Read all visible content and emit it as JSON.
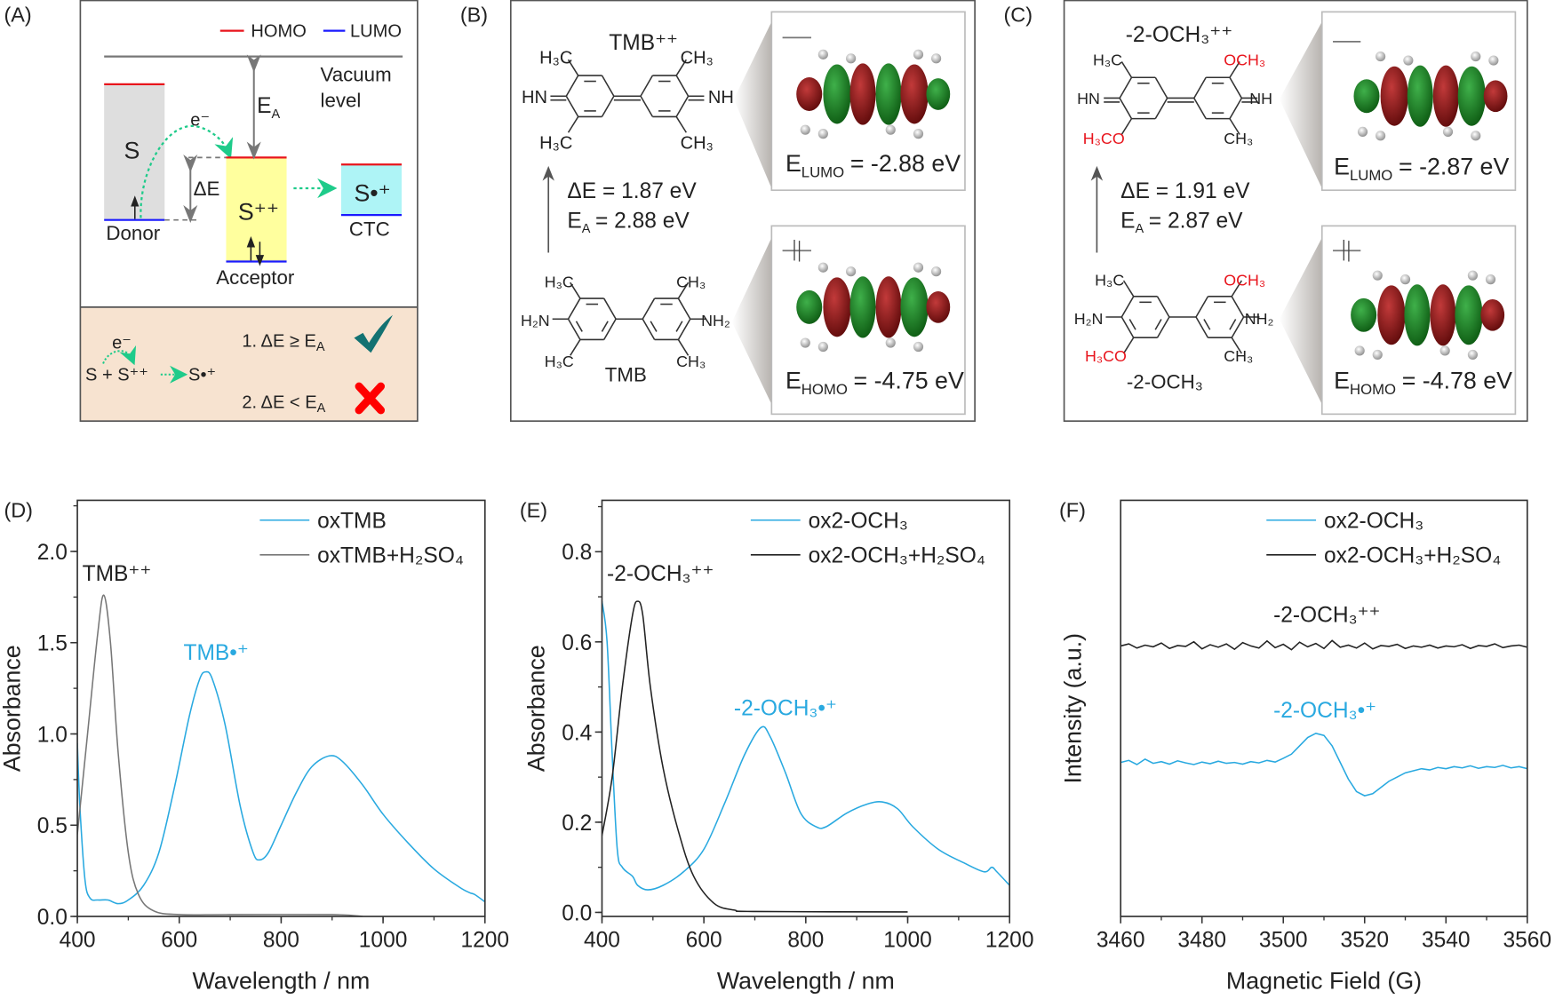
{
  "panel_labels": {
    "a": "(A)",
    "b": "(B)",
    "c": "(C)",
    "d": "(D)",
    "e": "(E)",
    "f": "(F)"
  },
  "colors": {
    "homo": "#e8141c",
    "lumo": "#1a1aff",
    "donor_fill": "#dedede",
    "acceptor_fill": "#ffff9e",
    "ctc_fill": "#aef4f6",
    "condition_bg": "#f7e3d0",
    "check": "#137272",
    "cross": "#ff0000",
    "transfer_arrow": "#1ecb8a",
    "orbital_positive": "#8b1414",
    "orbital_negative": "#1e8a22",
    "series_blue": "#29a9e0",
    "series_gray": "#777777",
    "series_black": "#222222",
    "methoxy": "#e8141c"
  },
  "panel_a": {
    "legend_homo": "HOMO",
    "legend_lumo": "LUMO",
    "vacuum_line1": "Vacuum",
    "vacuum_line2": "level",
    "ea": "E",
    "ea_sub": "A",
    "electron": "e⁻",
    "donor_symbol": "S",
    "delta_e": "ΔE",
    "acceptor_symbol": "S⁺⁺",
    "ctc_symbol": "S•⁺",
    "donor": "Donor",
    "acceptor": "Acceptor",
    "ctc": "CTC",
    "reaction_electron": "e⁻",
    "reaction_left": "S + S⁺⁺",
    "reaction_right": "S•⁺",
    "condition1": "1. ΔE ≥ E",
    "condition1_sub": "A",
    "condition1_icon": "check-icon",
    "condition2": "2. ΔE < E",
    "condition2_sub": "A",
    "condition2_icon": "cross-icon"
  },
  "panel_b": {
    "oxidized_name": "TMB⁺⁺",
    "reduced_name": "TMB",
    "oxidized_subs": {
      "top_left": "H₃C",
      "top_right": "CH₃",
      "bottom_left": "H₃C",
      "bottom_right": "CH₃",
      "left": "HN",
      "right": "NH"
    },
    "reduced_subs": {
      "top_left": "H₃C",
      "top_right": "CH₃",
      "bottom_left": "H₃C",
      "bottom_right": "CH₃",
      "left": "H₂N",
      "right": "NH₂"
    },
    "delta_e": "ΔE = 1.87 eV",
    "ea": "E",
    "ea_sub": "A",
    "ea_value": "= 2.88 eV",
    "lumo": {
      "label": "E",
      "sub": "LUMO",
      "value": "= -2.88 eV"
    },
    "homo": {
      "label": "E",
      "sub": "HOMO",
      "value": "= -4.75 eV"
    }
  },
  "panel_c": {
    "oxidized_name": "-2-OCH₃⁺⁺",
    "reduced_name": "-2-OCH₃",
    "oxidized_subs": {
      "top_left": "H₃C",
      "top_right": "OCH₃",
      "bottom_left": "H₃CO",
      "bottom_right": "CH₃",
      "left": "HN",
      "right": "NH"
    },
    "reduced_subs": {
      "top_left": "H₃C",
      "top_right": "OCH₃",
      "bottom_left": "H₃CO",
      "bottom_right": "CH₃",
      "left": "H₂N",
      "right": "NH₂"
    },
    "delta_e": "ΔE = 1.91 eV",
    "ea": "E",
    "ea_sub": "A",
    "ea_value": "= 2.87 eV",
    "lumo": {
      "label": "E",
      "sub": "LUMO",
      "value": "= -2.87 eV"
    },
    "homo": {
      "label": "E",
      "sub": "HOMO",
      "value": "= -4.78 eV"
    }
  },
  "chart_data": [
    {
      "id": "d",
      "type": "line",
      "xlabel": "Wavelength / nm",
      "ylabel": "Absorbance",
      "xlim": [
        400,
        1200
      ],
      "ylim": [
        0,
        2.28
      ],
      "xticks": [
        400,
        600,
        800,
        1000,
        1200
      ],
      "xtick_labels": [
        "400",
        "600",
        "800",
        "1000",
        "1200"
      ],
      "yticks": [
        0,
        0.5,
        1.0,
        1.5,
        2.0
      ],
      "ytick_labels": [
        "0.0",
        "0.5",
        "1.0",
        "1.5",
        "2.0"
      ],
      "grid": false,
      "legend": "top-right",
      "annotations": [
        {
          "text": "TMB⁺⁺",
          "color": "#222222"
        },
        {
          "text": "TMB•⁺",
          "color": "#29a9e0"
        }
      ],
      "series": [
        {
          "name": "oxTMB",
          "color": "#29a9e0",
          "x": [
            400,
            405,
            415,
            425,
            440,
            460,
            480,
            500,
            530,
            560,
            590,
            620,
            640,
            652,
            665,
            690,
            720,
            745,
            758,
            775,
            800,
            830,
            860,
            895,
            920,
            960,
            1000,
            1050,
            1100,
            1150,
            1170,
            1180,
            1200
          ],
          "y": [
            0.95,
            0.6,
            0.2,
            0.1,
            0.09,
            0.09,
            0.07,
            0.09,
            0.17,
            0.35,
            0.7,
            1.1,
            1.3,
            1.34,
            1.3,
            1.05,
            0.6,
            0.35,
            0.31,
            0.35,
            0.5,
            0.68,
            0.82,
            0.88,
            0.85,
            0.72,
            0.56,
            0.4,
            0.26,
            0.16,
            0.13,
            0.12,
            0.08
          ]
        },
        {
          "name": "oxTMB+H₂SO₄",
          "color": "#777777",
          "x": [
            400,
            420,
            440,
            452,
            465,
            480,
            500,
            520,
            550,
            600,
            700,
            900,
            960
          ],
          "y": [
            0.45,
            1.0,
            1.55,
            1.76,
            1.5,
            0.9,
            0.35,
            0.12,
            0.03,
            0.01,
            0.01,
            0.01,
            0.0
          ]
        }
      ]
    },
    {
      "id": "e",
      "type": "line",
      "xlabel": "Wavelength / nm",
      "ylabel": "Absorbance",
      "xlim": [
        400,
        1200
      ],
      "ylim": [
        -0.009,
        0.914
      ],
      "xticks": [
        400,
        600,
        800,
        1000,
        1200
      ],
      "xtick_labels": [
        "400",
        "600",
        "800",
        "1000",
        "1200"
      ],
      "yticks": [
        0,
        0.2,
        0.4,
        0.6,
        0.8
      ],
      "ytick_labels": [
        "0.0",
        "0.2",
        "0.4",
        "0.6",
        "0.8"
      ],
      "grid": false,
      "legend": "top-right",
      "annotations": [
        {
          "text": "-2-OCH₃⁺⁺",
          "color": "#222222"
        },
        {
          "text": "-2-OCH₃•⁺",
          "color": "#29a9e0"
        }
      ],
      "series": [
        {
          "name": "ox2-OCH₃",
          "color": "#29a9e0",
          "x": [
            400,
            410,
            420,
            430,
            440,
            460,
            470,
            490,
            520,
            560,
            600,
            640,
            680,
            712,
            730,
            760,
            790,
            820,
            840,
            880,
            920,
            950,
            980,
            1010,
            1060,
            1110,
            1150,
            1165,
            1175,
            1200
          ],
          "y": [
            0.69,
            0.6,
            0.35,
            0.14,
            0.1,
            0.08,
            0.06,
            0.05,
            0.06,
            0.09,
            0.14,
            0.24,
            0.35,
            0.41,
            0.39,
            0.31,
            0.22,
            0.19,
            0.19,
            0.22,
            0.24,
            0.245,
            0.23,
            0.19,
            0.14,
            0.11,
            0.09,
            0.1,
            0.09,
            0.06
          ]
        },
        {
          "name": "ox2-OCH₃+H₂SO₄",
          "color": "#222222",
          "x": [
            400,
            420,
            440,
            460,
            470,
            480,
            495,
            520,
            550,
            580,
            620,
            660,
            700,
            1000
          ],
          "y": [
            0.17,
            0.3,
            0.5,
            0.66,
            0.69,
            0.66,
            0.5,
            0.32,
            0.18,
            0.08,
            0.02,
            0.005,
            0.002,
            0.001
          ]
        }
      ]
    },
    {
      "id": "f",
      "type": "line",
      "xlabel": "Magnetic Field (G)",
      "ylabel": "Intensity (a.u.)",
      "xlim": [
        3460,
        3560
      ],
      "ylim": [
        0,
        1
      ],
      "xticks": [
        3460,
        3480,
        3500,
        3520,
        3540,
        3560
      ],
      "xtick_labels": [
        "3460",
        "3480",
        "3500",
        "3520",
        "3540",
        "3560"
      ],
      "yticks": [],
      "ytick_labels": [],
      "grid": false,
      "legend": "top-right",
      "annotations": [
        {
          "text": "-2-OCH₃⁺⁺",
          "color": "#222222"
        },
        {
          "text": "-2-OCH₃•⁺",
          "color": "#29a9e0"
        }
      ],
      "series": [
        {
          "name": "ox2-OCH₃",
          "color": "#29a9e0",
          "x": [
            3460,
            3462,
            3464,
            3466,
            3468,
            3470,
            3472,
            3474,
            3476,
            3478,
            3480,
            3482,
            3484,
            3486,
            3488,
            3490,
            3492,
            3494,
            3496,
            3498,
            3500,
            3502,
            3504,
            3506,
            3508,
            3510,
            3512,
            3514,
            3516,
            3518,
            3520,
            3522,
            3524,
            3526,
            3528,
            3530,
            3532,
            3534,
            3536,
            3538,
            3540,
            3542,
            3544,
            3546,
            3548,
            3550,
            3552,
            3554,
            3556,
            3558,
            3560
          ],
          "y": [
            0.37,
            0.375,
            0.365,
            0.378,
            0.368,
            0.372,
            0.366,
            0.374,
            0.369,
            0.365,
            0.371,
            0.367,
            0.373,
            0.368,
            0.37,
            0.366,
            0.372,
            0.369,
            0.375,
            0.371,
            0.38,
            0.39,
            0.41,
            0.43,
            0.44,
            0.435,
            0.41,
            0.37,
            0.33,
            0.3,
            0.29,
            0.295,
            0.31,
            0.325,
            0.335,
            0.345,
            0.35,
            0.355,
            0.352,
            0.358,
            0.355,
            0.36,
            0.357,
            0.362,
            0.356,
            0.36,
            0.358,
            0.363,
            0.357,
            0.36,
            0.355
          ]
        },
        {
          "name": "ox2-OCH₃+H₂SO₄",
          "color": "#222222",
          "x": [
            3460,
            3462,
            3464,
            3466,
            3468,
            3470,
            3472,
            3474,
            3476,
            3478,
            3480,
            3482,
            3484,
            3486,
            3488,
            3490,
            3492,
            3494,
            3496,
            3498,
            3500,
            3502,
            3504,
            3506,
            3508,
            3510,
            3512,
            3514,
            3516,
            3518,
            3520,
            3522,
            3524,
            3526,
            3528,
            3530,
            3532,
            3534,
            3536,
            3538,
            3540,
            3542,
            3544,
            3546,
            3548,
            3550,
            3552,
            3554,
            3556,
            3558,
            3560
          ],
          "y": [
            0.65,
            0.655,
            0.645,
            0.652,
            0.648,
            0.657,
            0.644,
            0.651,
            0.649,
            0.66,
            0.643,
            0.653,
            0.647,
            0.655,
            0.642,
            0.658,
            0.65,
            0.645,
            0.662,
            0.646,
            0.654,
            0.641,
            0.659,
            0.648,
            0.656,
            0.644,
            0.663,
            0.647,
            0.652,
            0.645,
            0.657,
            0.643,
            0.651,
            0.649,
            0.654,
            0.644,
            0.65,
            0.647,
            0.652,
            0.645,
            0.65,
            0.648,
            0.653,
            0.644,
            0.651,
            0.649,
            0.655,
            0.646,
            0.65,
            0.652,
            0.647
          ]
        }
      ]
    }
  ]
}
